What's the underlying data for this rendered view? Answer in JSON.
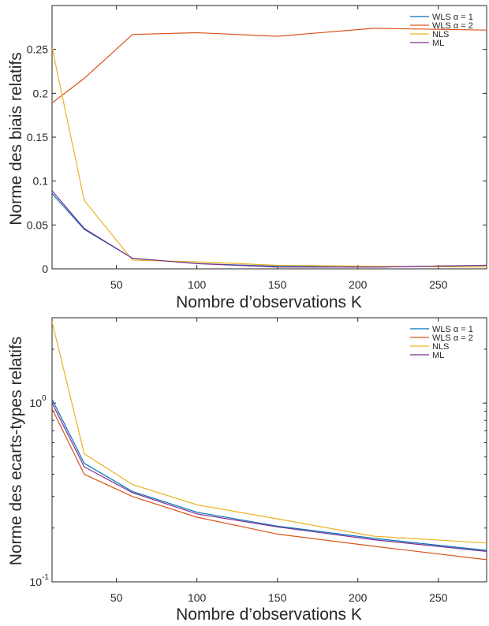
{
  "chart_data": [
    {
      "type": "line",
      "title": "",
      "xlabel": "Nombre d’observations K",
      "ylabel": "Norme des biais relatifs",
      "xlim": [
        10,
        280
      ],
      "ylim": [
        0,
        0.3
      ],
      "yscale": "linear",
      "grid": false,
      "legend_position": "top-right",
      "x_ticks": [
        50,
        100,
        150,
        200,
        250
      ],
      "x_tick_labels": [
        "50",
        "100",
        "150",
        "200",
        "250"
      ],
      "y_ticks": [
        0,
        0.05,
        0.1,
        0.15,
        0.2,
        0.25
      ],
      "y_tick_labels": [
        "0",
        "0.05",
        "0.1",
        "0.15",
        "0.2",
        "0.25"
      ],
      "x": [
        10,
        30,
        60,
        100,
        150,
        210,
        280
      ],
      "series": [
        {
          "name": "WLS α = 1",
          "color": "#0072BD",
          "values": [
            0.086,
            0.045,
            0.012,
            0.006,
            0.003,
            0.002,
            0.004
          ]
        },
        {
          "name": "WLS α = 2",
          "color": "#D95319",
          "values": [
            0.189,
            0.217,
            0.267,
            0.269,
            0.265,
            0.274,
            0.272
          ]
        },
        {
          "name": "NLS",
          "color": "#EDB120",
          "values": [
            0.252,
            0.078,
            0.01,
            0.008,
            0.004,
            0.003,
            0.002
          ]
        },
        {
          "name": "ML",
          "color": "#7E2F8E",
          "values": [
            0.089,
            0.046,
            0.012,
            0.006,
            0.002,
            0.002,
            0.004
          ]
        }
      ]
    },
    {
      "type": "line",
      "title": "",
      "xlabel": "Nombre d’observations K",
      "ylabel": "Norme des ecarts-types relatifs",
      "xlim": [
        10,
        280
      ],
      "ylim": [
        0.1,
        3
      ],
      "yscale": "log",
      "grid": false,
      "legend_position": "top-right",
      "x_ticks": [
        50,
        100,
        150,
        200,
        250
      ],
      "x_tick_labels": [
        "50",
        "100",
        "150",
        "200",
        "250"
      ],
      "y_ticks": [
        0.1,
        1
      ],
      "y_tick_labels": [
        {
          "base": "10",
          "exp": "-1"
        },
        {
          "base": "10",
          "exp": "0"
        }
      ],
      "x": [
        10,
        30,
        60,
        100,
        150,
        210,
        280
      ],
      "series": [
        {
          "name": "WLS α = 1",
          "color": "#0072BD",
          "values": [
            1.05,
            0.46,
            0.32,
            0.245,
            0.205,
            0.175,
            0.15
          ]
        },
        {
          "name": "WLS α = 2",
          "color": "#D95319",
          "values": [
            0.93,
            0.4,
            0.3,
            0.23,
            0.185,
            0.158,
            0.133
          ]
        },
        {
          "name": "NLS",
          "color": "#EDB120",
          "values": [
            2.85,
            0.52,
            0.35,
            0.27,
            0.225,
            0.18,
            0.165
          ]
        },
        {
          "name": "ML",
          "color": "#7E2F8E",
          "values": [
            1.0,
            0.44,
            0.315,
            0.24,
            0.203,
            0.172,
            0.148
          ]
        }
      ]
    }
  ]
}
